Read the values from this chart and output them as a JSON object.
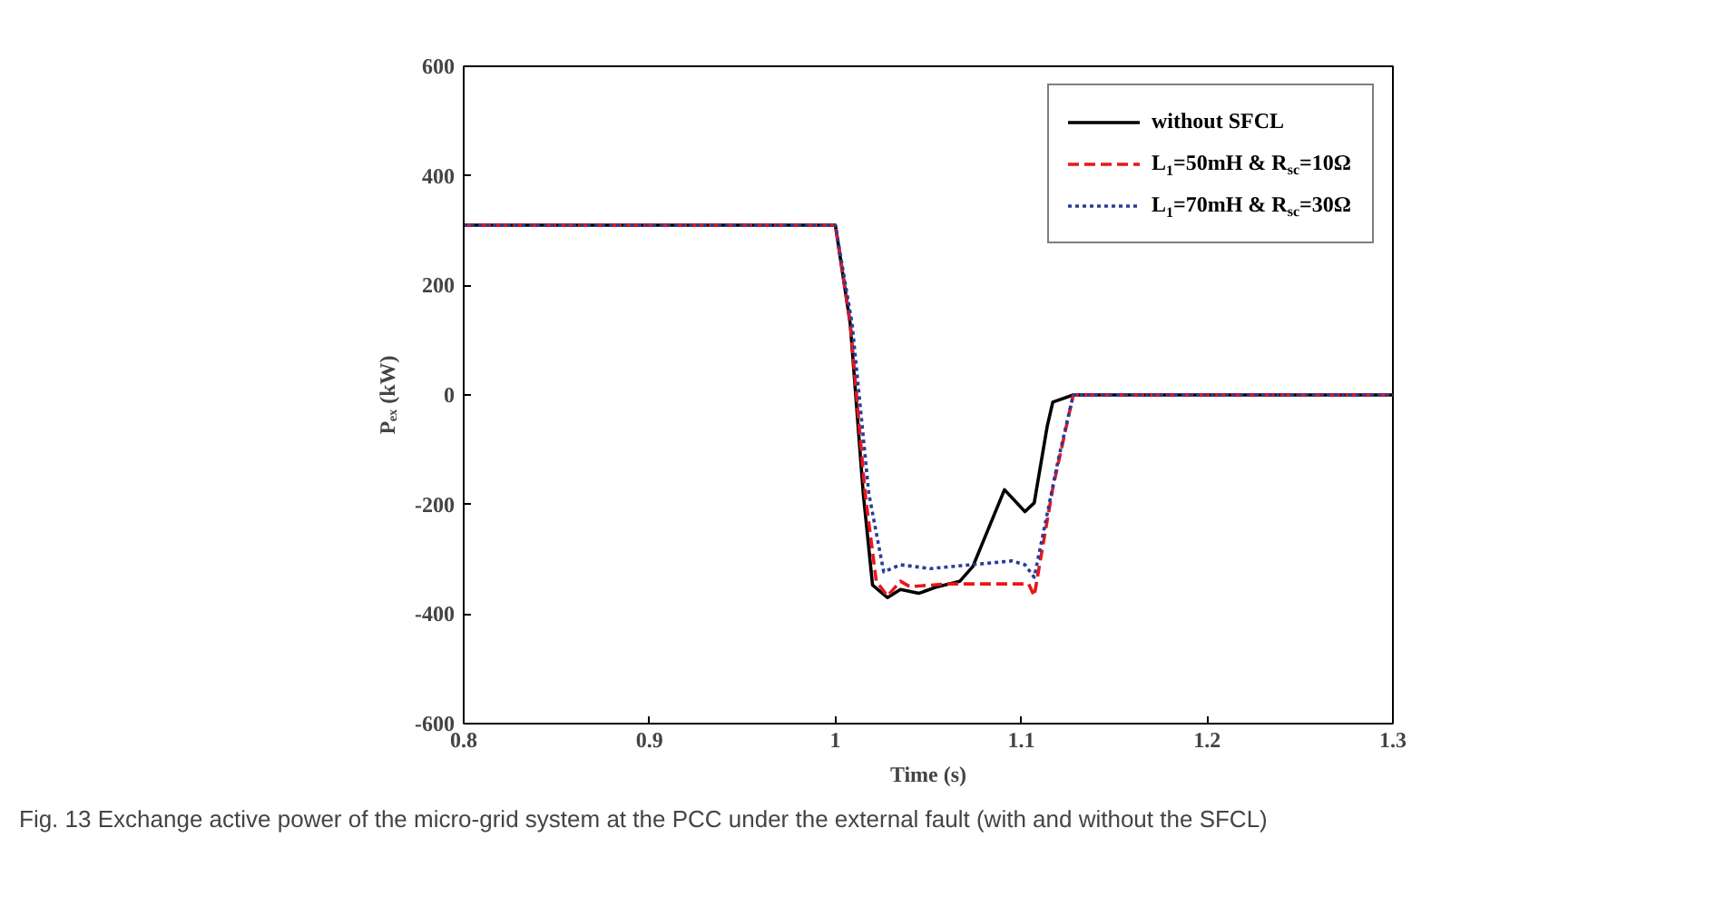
{
  "chart_data": {
    "type": "line",
    "xlabel": "Time (s)",
    "ylabel": "Pₑₓ (kW)",
    "xlim": [
      0.8,
      1.3
    ],
    "xticks": [
      0.8,
      0.9,
      1,
      1.1,
      1.2,
      1.3
    ],
    "ylim": [
      -600,
      600
    ],
    "yticks": [
      -600,
      -400,
      -200,
      0,
      200,
      400,
      600
    ],
    "grid": false,
    "legend": "top right",
    "marker": "none",
    "annotations": [
      "Fig. 13  Exchange active power of the micro-grid system at the PCC under the external fault (with and without the SFCL)"
    ],
    "series": [
      {
        "name": "without SFCL",
        "color": "#000000",
        "line_style": "solid",
        "x": [
          0.8,
          1.0,
          1.008,
          1.015,
          1.02,
          1.028,
          1.035,
          1.045,
          1.055,
          1.067,
          1.074,
          1.091,
          1.102,
          1.107,
          1.114,
          1.117,
          1.128,
          1.3
        ],
        "values": [
          310,
          310,
          130,
          -180,
          -347,
          -370,
          -355,
          -362,
          -350,
          -340,
          -313,
          -173,
          -213,
          -197,
          -57,
          -13,
          0,
          0
        ]
      },
      {
        "name": "L$_{1}$=50mH & R$_{sc}$=10Ω",
        "color": "#e8161b",
        "line_style": "dashed",
        "x": [
          0.8,
          1.0,
          1.008,
          1.016,
          1.022,
          1.028,
          1.035,
          1.04,
          1.06,
          1.104,
          1.107,
          1.117,
          1.128,
          1.3
        ],
        "values": [
          310,
          310,
          130,
          -180,
          -340,
          -367,
          -340,
          -350,
          -345,
          -345,
          -367,
          -170,
          0,
          0
        ]
      },
      {
        "name": "L$_{1}$=70mH & R$_{sc}$=30Ω",
        "color": "#2b3c9a",
        "line_style": "dotted",
        "x": [
          0.8,
          1.0,
          1.009,
          1.018,
          1.026,
          1.035,
          1.051,
          1.095,
          1.102,
          1.107,
          1.12,
          1.128,
          1.3
        ],
        "values": [
          310,
          310,
          130,
          -180,
          -323,
          -310,
          -317,
          -303,
          -310,
          -333,
          -117,
          0,
          0
        ]
      }
    ]
  }
}
